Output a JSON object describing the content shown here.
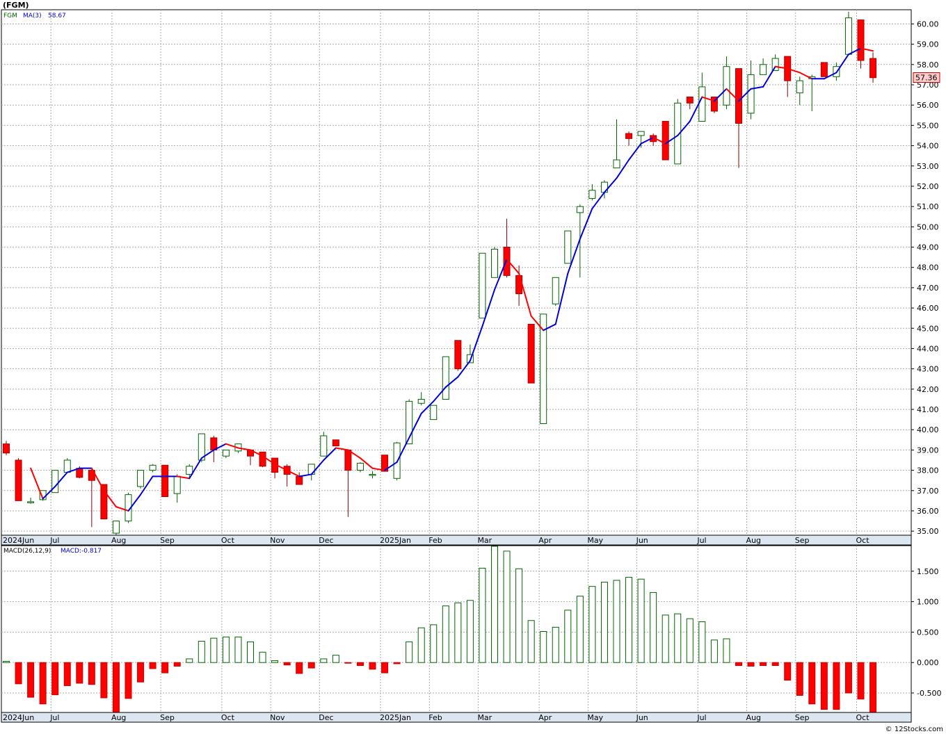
{
  "header": {
    "title": "(FGM)",
    "legend_symbol": "FGM",
    "legend_ma_label": "MA(3)",
    "legend_ma_value": "58.67",
    "macd_label": "MACD(26,12,9)",
    "macd_value_label": "MACD:-0.817",
    "last_price_tag": "57.36",
    "credit": "© 12Stocks.com"
  },
  "colors": {
    "up": "#006400",
    "down": "#ff0000",
    "ma_up": "#0000dd",
    "ma_down": "#ff0000",
    "grid": "#aaaaaa",
    "axis_band": "#dce6f0",
    "price_tag_bg": "#ffcccc",
    "price_tag_border": "#cc0000"
  },
  "month_labels": [
    "2024Jun",
    "Jul",
    "Aug",
    "Sep",
    "Oct",
    "Nov",
    "Dec",
    "2025Jan",
    "Feb",
    "Mar",
    "Apr",
    "May",
    "Jun",
    "Jul",
    "Aug",
    "Sep",
    "Oct"
  ],
  "month_start_bar": [
    0,
    4,
    9,
    13,
    18,
    22,
    26,
    31,
    35,
    39,
    44,
    48,
    52,
    57,
    61,
    65,
    70
  ],
  "chart_data": [
    {
      "type": "candlestick",
      "title": "(FGM)",
      "y_ticks": [
        "35.00",
        "36.00",
        "37.00",
        "38.00",
        "39.00",
        "40.00",
        "41.00",
        "42.00",
        "43.00",
        "44.00",
        "45.00",
        "46.00",
        "47.00",
        "48.00",
        "49.00",
        "50.00",
        "51.00",
        "52.00",
        "53.00",
        "54.00",
        "55.00",
        "56.00",
        "57.00",
        "58.00",
        "59.00",
        "60.00"
      ],
      "ylim": [
        34.8,
        60.7
      ],
      "ohlc": [
        [
          39.3,
          39.45,
          38.75,
          38.85
        ],
        [
          38.5,
          38.6,
          36.5,
          36.5
        ],
        [
          36.45,
          36.65,
          36.35,
          36.45
        ],
        [
          36.55,
          37.0,
          36.5,
          37.0
        ],
        [
          36.9,
          38.0,
          36.9,
          38.0
        ],
        [
          37.9,
          38.6,
          37.9,
          38.5
        ],
        [
          38.1,
          38.2,
          37.6,
          37.65
        ],
        [
          38.0,
          38.05,
          35.2,
          37.5
        ],
        [
          37.3,
          37.3,
          35.6,
          35.6
        ],
        [
          34.9,
          35.5,
          34.8,
          35.5
        ],
        [
          35.5,
          36.9,
          35.4,
          36.8
        ],
        [
          37.2,
          38.0,
          37.1,
          38.0
        ],
        [
          38.0,
          38.3,
          37.9,
          38.25
        ],
        [
          38.25,
          38.25,
          36.7,
          36.7
        ],
        [
          36.85,
          37.8,
          36.4,
          37.7
        ],
        [
          37.8,
          38.3,
          37.6,
          38.2
        ],
        [
          38.5,
          39.8,
          38.4,
          39.8
        ],
        [
          39.6,
          39.7,
          38.4,
          39.0
        ],
        [
          38.7,
          39.0,
          38.6,
          39.0
        ],
        [
          38.95,
          39.3,
          38.85,
          39.3
        ],
        [
          39.0,
          39.0,
          38.25,
          38.7
        ],
        [
          38.9,
          38.9,
          38.15,
          38.2
        ],
        [
          38.6,
          38.6,
          37.6,
          37.9
        ],
        [
          38.2,
          38.3,
          37.2,
          37.8
        ],
        [
          37.7,
          37.9,
          37.3,
          37.3
        ],
        [
          37.8,
          38.3,
          37.5,
          38.3
        ],
        [
          38.7,
          39.9,
          38.7,
          39.7
        ],
        [
          39.5,
          39.5,
          39.2,
          39.2
        ],
        [
          39.0,
          39.0,
          35.7,
          38.0
        ],
        [
          38.0,
          38.4,
          37.9,
          38.35
        ],
        [
          37.8,
          37.95,
          37.6,
          37.8
        ],
        [
          38.75,
          38.75,
          37.95,
          37.95
        ],
        [
          37.6,
          39.4,
          37.5,
          39.35
        ],
        [
          39.3,
          41.5,
          39.3,
          41.4
        ],
        [
          41.3,
          41.85,
          41.2,
          41.5
        ],
        [
          40.5,
          41.2,
          40.5,
          41.2
        ],
        [
          41.5,
          43.6,
          41.5,
          43.6
        ],
        [
          44.4,
          44.4,
          42.9,
          43.0
        ],
        [
          43.3,
          44.2,
          43.3,
          43.7
        ],
        [
          45.5,
          48.7,
          45.5,
          48.7
        ],
        [
          47.5,
          49.0,
          47.5,
          48.9
        ],
        [
          49.0,
          50.4,
          47.5,
          47.6
        ],
        [
          47.6,
          48.1,
          46.1,
          46.7
        ],
        [
          45.2,
          45.2,
          42.3,
          42.3
        ],
        [
          40.3,
          45.7,
          40.3,
          45.7
        ],
        [
          46.2,
          47.5,
          46.1,
          47.5
        ],
        [
          48.2,
          49.8,
          48.2,
          49.8
        ],
        [
          50.7,
          51.1,
          47.5,
          51.0
        ],
        [
          51.4,
          52.1,
          51.3,
          51.8
        ],
        [
          51.7,
          52.3,
          51.4,
          52.2
        ],
        [
          52.9,
          55.3,
          52.9,
          53.3
        ],
        [
          54.6,
          54.7,
          54.0,
          54.35
        ],
        [
          54.5,
          54.7,
          53.9,
          54.7
        ],
        [
          54.5,
          54.6,
          54.0,
          54.2
        ],
        [
          55.2,
          55.2,
          53.3,
          53.3
        ],
        [
          53.1,
          56.3,
          53.1,
          56.1
        ],
        [
          56.4,
          56.4,
          55.8,
          56.1
        ],
        [
          55.2,
          57.6,
          55.2,
          56.9
        ],
        [
          56.4,
          56.4,
          55.6,
          55.7
        ],
        [
          56.0,
          58.4,
          55.8,
          57.9
        ],
        [
          57.8,
          57.8,
          52.9,
          55.1
        ],
        [
          55.6,
          58.2,
          55.3,
          57.5
        ],
        [
          57.5,
          58.3,
          57.5,
          58.0
        ],
        [
          57.7,
          58.5,
          57.7,
          58.3
        ],
        [
          58.4,
          58.4,
          56.4,
          57.2
        ],
        [
          56.6,
          57.4,
          56.0,
          57.2
        ],
        [
          57.3,
          57.5,
          55.7,
          57.4
        ],
        [
          58.1,
          58.1,
          57.4,
          57.4
        ],
        [
          57.4,
          58.1,
          57.2,
          57.9
        ],
        [
          58.5,
          60.6,
          58.5,
          60.3
        ],
        [
          60.2,
          60.2,
          57.8,
          58.2
        ],
        [
          58.3,
          58.6,
          57.1,
          57.35
        ]
      ],
      "ma3": [
        null,
        null,
        38.1,
        36.6,
        37.2,
        37.9,
        38.1,
        38.1,
        37.0,
        36.2,
        36.0,
        36.8,
        37.7,
        37.7,
        37.7,
        37.6,
        38.6,
        39.0,
        39.3,
        39.1,
        39.0,
        38.7,
        38.3,
        38.0,
        37.7,
        37.8,
        38.5,
        39.1,
        39.0,
        38.6,
        38.1,
        38.0,
        38.4,
        39.6,
        40.8,
        41.4,
        42.1,
        42.6,
        43.4,
        45.1,
        46.9,
        48.4,
        47.7,
        45.6,
        44.9,
        45.2,
        47.7,
        49.4,
        50.9,
        51.7,
        52.4,
        53.3,
        54.1,
        54.4,
        54.1,
        54.5,
        55.2,
        56.4,
        56.2,
        56.8,
        56.2,
        56.8,
        56.9,
        57.9,
        57.8,
        57.6,
        57.3,
        57.3,
        57.6,
        58.5,
        58.8,
        58.67
      ],
      "ma3_down": [
        null,
        null,
        false,
        true,
        false,
        false,
        false,
        false,
        true,
        true,
        true,
        false,
        false,
        false,
        false,
        true,
        false,
        false,
        false,
        true,
        true,
        true,
        true,
        true,
        true,
        false,
        false,
        false,
        true,
        true,
        true,
        true,
        false,
        false,
        false,
        false,
        false,
        false,
        false,
        false,
        false,
        false,
        true,
        true,
        true,
        false,
        false,
        false,
        false,
        false,
        false,
        false,
        false,
        false,
        true,
        false,
        false,
        false,
        true,
        false,
        true,
        false,
        false,
        false,
        true,
        true,
        true,
        false,
        false,
        false,
        false,
        true
      ],
      "last_price": 57.36
    },
    {
      "type": "bar",
      "title": "MACD(26,12,9)",
      "y_ticks": [
        "-0.500",
        "0.000",
        "0.500",
        "1.000",
        "1.500"
      ],
      "ylim": [
        -0.82,
        1.92
      ],
      "values": [
        0.02,
        -0.35,
        -0.57,
        -0.68,
        -0.53,
        -0.38,
        -0.34,
        -0.36,
        -0.58,
        -0.82,
        -0.59,
        -0.32,
        -0.1,
        -0.17,
        -0.06,
        0.06,
        0.35,
        0.4,
        0.42,
        0.42,
        0.34,
        0.17,
        0.03,
        -0.04,
        -0.18,
        -0.09,
        0.06,
        0.12,
        -0.01,
        -0.05,
        -0.11,
        -0.17,
        -0.02,
        0.34,
        0.57,
        0.62,
        0.93,
        0.98,
        1.02,
        1.55,
        1.91,
        1.83,
        1.54,
        0.69,
        0.51,
        0.58,
        0.86,
        1.09,
        1.25,
        1.32,
        1.35,
        1.4,
        1.37,
        1.15,
        0.78,
        0.8,
        0.72,
        0.67,
        0.37,
        0.39,
        -0.05,
        -0.06,
        -0.05,
        -0.05,
        -0.29,
        -0.54,
        -0.68,
        -0.77,
        -0.77,
        -0.5,
        -0.6,
        -0.82
      ]
    }
  ]
}
